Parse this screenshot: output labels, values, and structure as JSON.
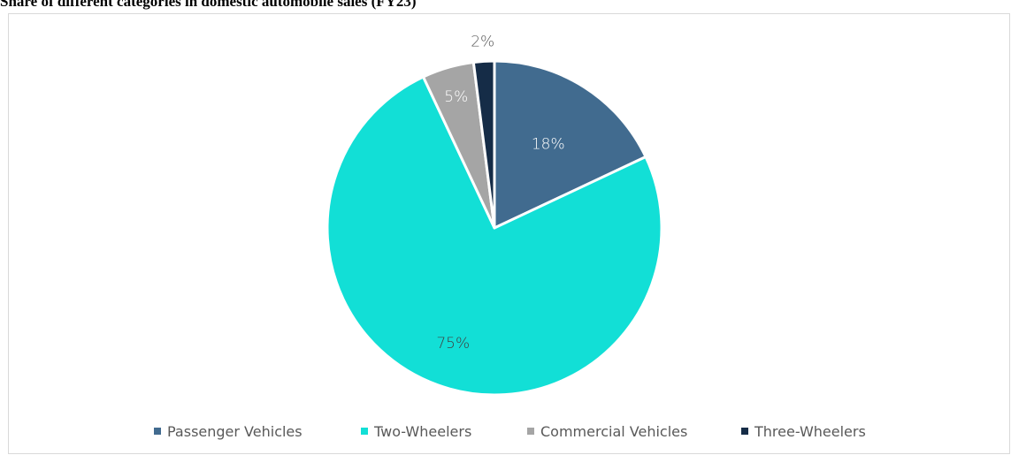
{
  "chart_data": {
    "type": "pie",
    "title": "Share of different categories in domestic automobile sales (FY23)",
    "categories": [
      "Passenger Vehicles",
      "Two-Wheelers",
      "Commercial Vehicles",
      "Three-Wheelers"
    ],
    "values": [
      18,
      75,
      5,
      2
    ],
    "data_labels": [
      "18%",
      "75%",
      "5%",
      "2%"
    ],
    "colors": [
      "#416b8f",
      "#12dfd6",
      "#a5a5a5",
      "#152c47"
    ],
    "label_colors": [
      "#ffffff",
      "#404040",
      "#ffffff",
      "#595959"
    ],
    "legend": "bottom",
    "start_angle": "12 o'clock, clockwise"
  }
}
